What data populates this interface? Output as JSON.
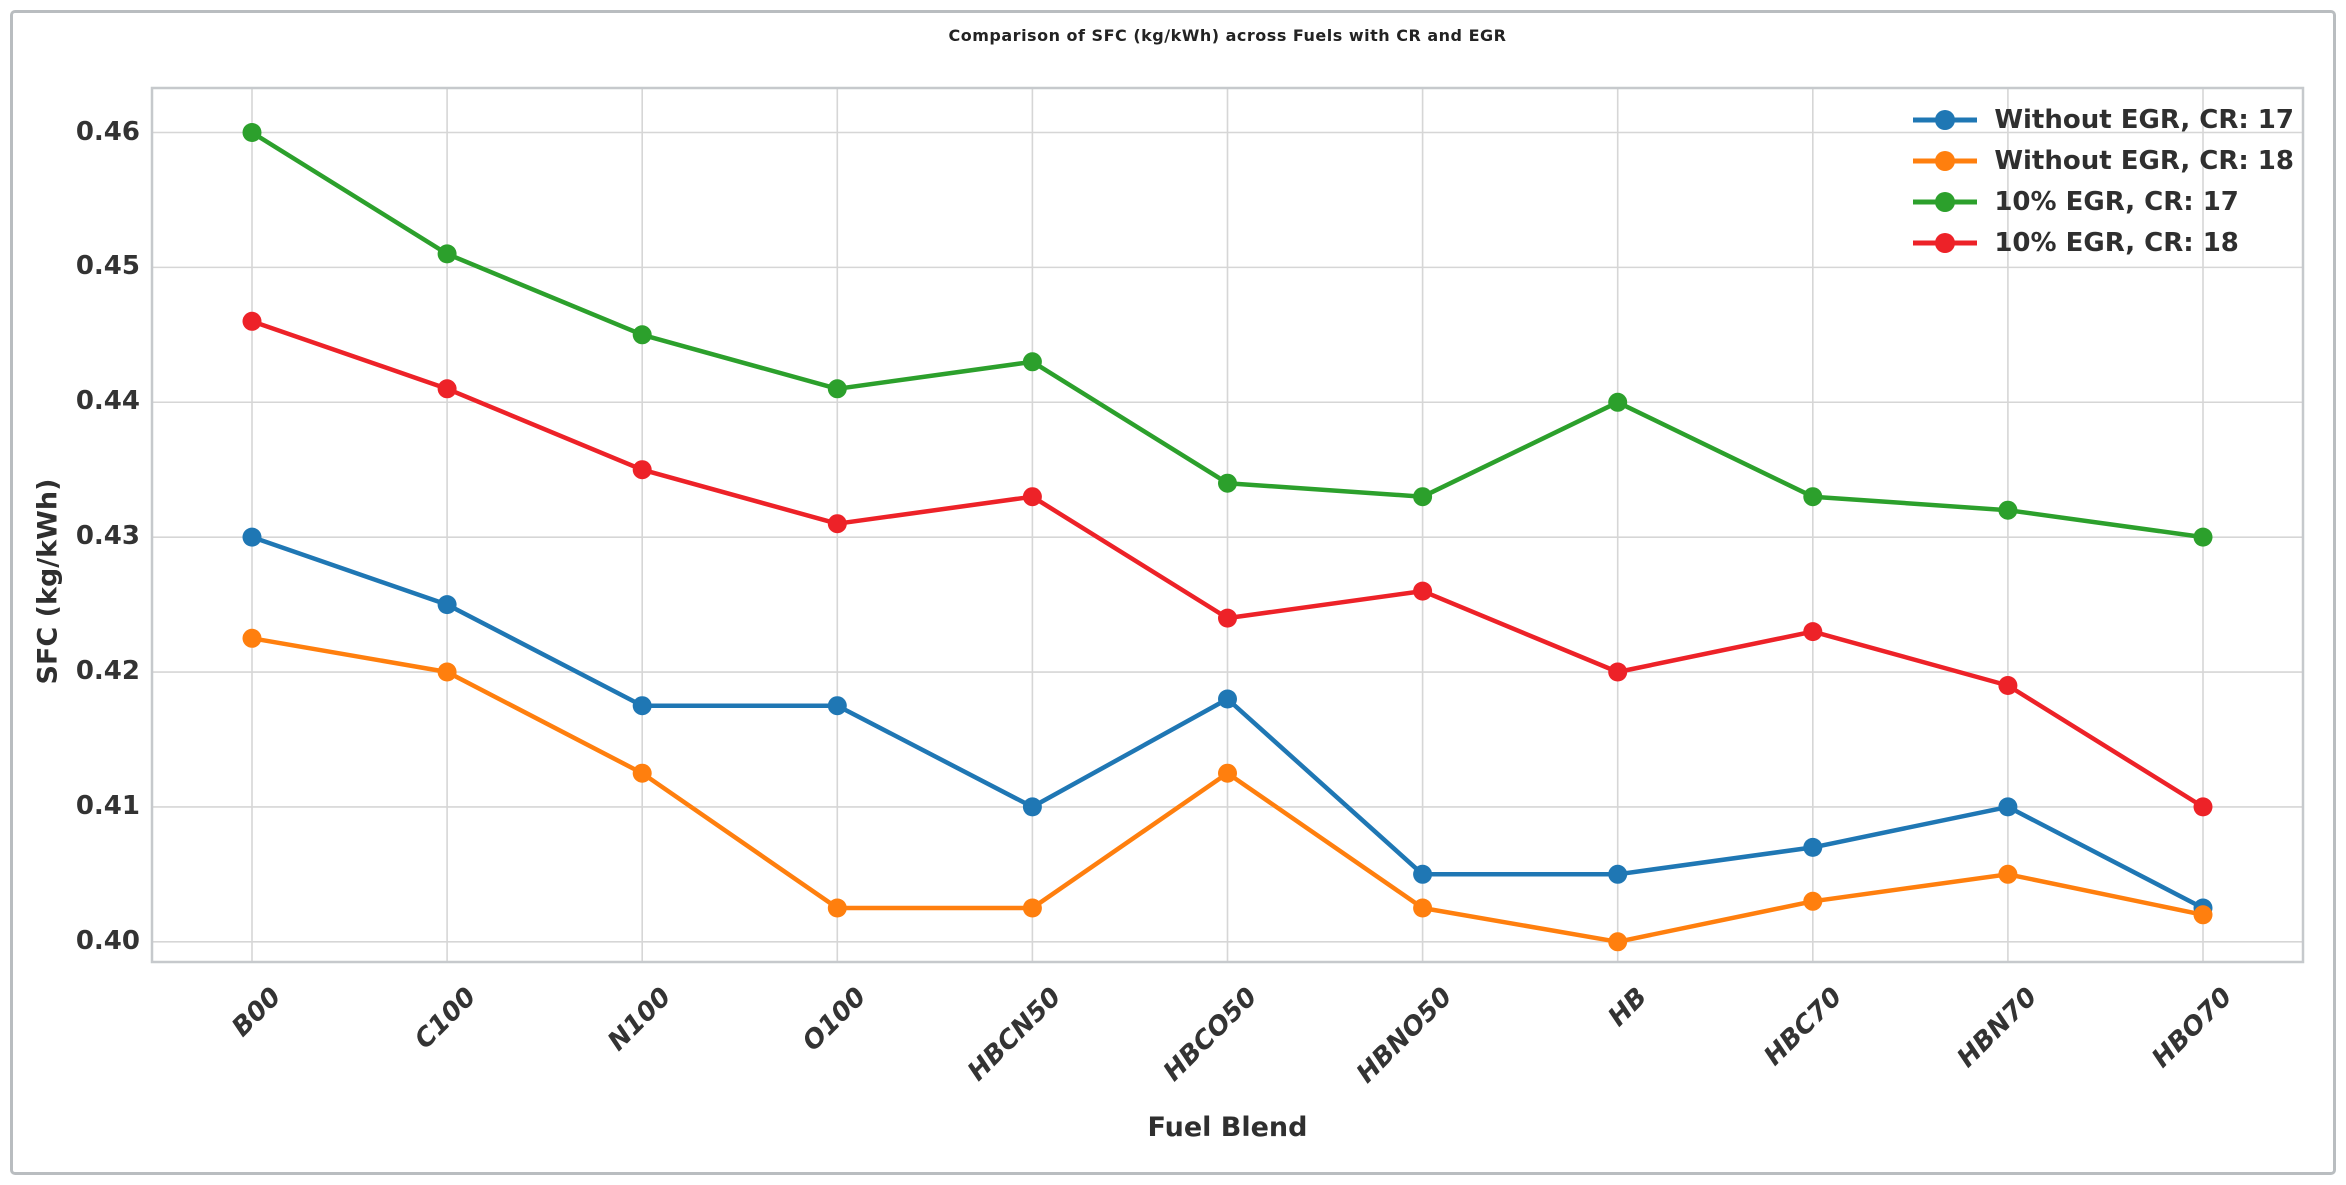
{
  "window": {
    "background": "#ffffff",
    "frame_border_color": "#b9bdc0"
  },
  "style": {
    "grid_color": "#d6d6d6",
    "spine_color": "#c6c9cc",
    "text_color": "#2f2f2f",
    "background": "#ffffff"
  },
  "chart_data": {
    "type": "line",
    "title": "Comparison of SFC (kg/kWh) across Fuels with CR and EGR",
    "xlabel": "Fuel Blend",
    "ylabel": "SFC (kg/kWh)",
    "categories": [
      "B00",
      "C100",
      "N100",
      "O100",
      "HBCN50",
      "HBCO50",
      "HBNO50",
      "HB",
      "HBC70",
      "HBN70",
      "HBO70"
    ],
    "series": [
      {
        "name": "Without EGR, CR: 17",
        "color": "#1f77b4",
        "values": [
          0.43,
          0.425,
          0.4175,
          0.4175,
          0.41,
          0.418,
          0.405,
          0.405,
          0.407,
          0.41,
          0.4025
        ]
      },
      {
        "name": "Without EGR, CR: 18",
        "color": "#ff7f0e",
        "values": [
          0.4225,
          0.42,
          0.4125,
          0.4025,
          0.4025,
          0.4125,
          0.4025,
          0.4,
          0.403,
          0.405,
          0.402
        ]
      },
      {
        "name": "10% EGR, CR: 17",
        "color": "#2ca02c",
        "values": [
          0.46,
          0.451,
          0.445,
          0.441,
          0.443,
          0.434,
          0.433,
          0.44,
          0.433,
          0.432,
          0.43
        ]
      },
      {
        "name": "10% EGR, CR: 18",
        "color": "#ed2228",
        "values": [
          0.446,
          0.441,
          0.435,
          0.431,
          0.433,
          0.424,
          0.426,
          0.42,
          0.423,
          0.419,
          0.41
        ]
      }
    ],
    "yticks": [
      0.4,
      0.41,
      0.42,
      0.43,
      0.44,
      0.45,
      0.46
    ],
    "ytick_format_decimals": 2,
    "ylim": [
      0.3985,
      0.4633
    ],
    "grid": true,
    "legend_position": "upper right",
    "marker": "circle"
  }
}
